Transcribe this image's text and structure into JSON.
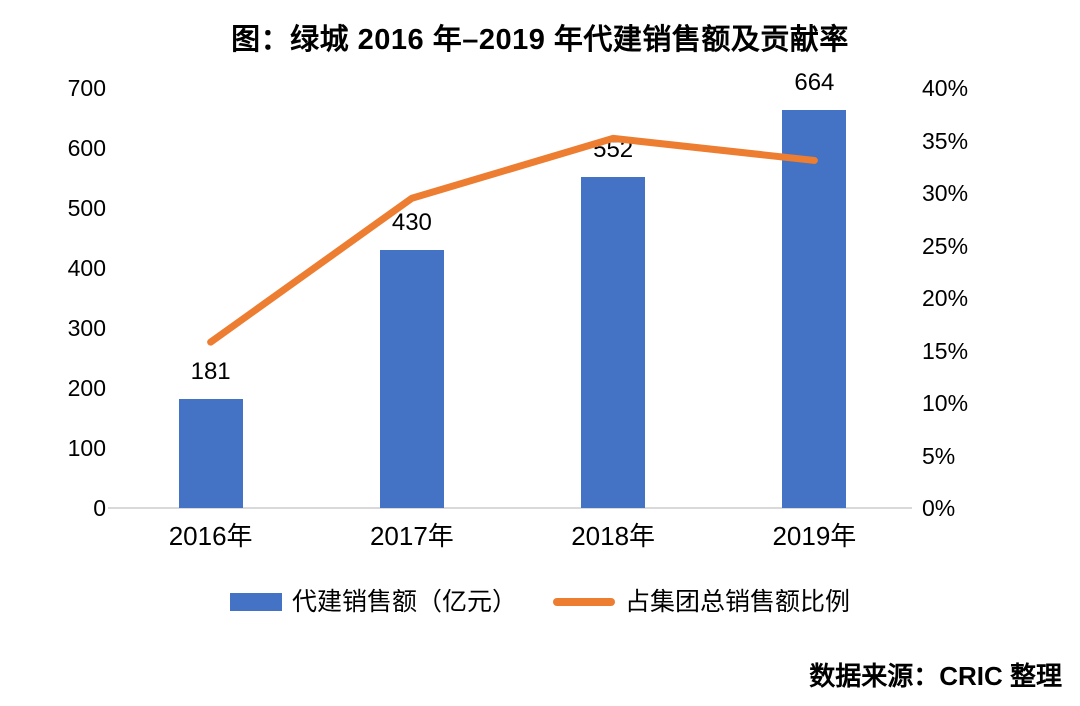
{
  "chart_data": {
    "type": "bar",
    "combo": "bar+line",
    "title": "图：绿城 2016 年–2019 年代建销售额及贡献率",
    "categories": [
      "2016年",
      "2017年",
      "2018年",
      "2019年"
    ],
    "series": [
      {
        "name": "代建销售额（亿元）",
        "type": "bar",
        "axis": "left",
        "color": "#4472C4",
        "values": [
          181,
          430,
          552,
          664
        ],
        "data_labels": [
          "181",
          "430",
          "552",
          "664"
        ]
      },
      {
        "name": "占集团总销售额比例",
        "type": "line",
        "axis": "right",
        "color": "#ED7D31",
        "values_percent": [
          15.8,
          29.5,
          35.2,
          33.1
        ],
        "estimated": true
      }
    ],
    "left_axis": {
      "min": 0,
      "max": 700,
      "step": 100,
      "tick_labels": [
        "700",
        "600",
        "500",
        "400",
        "300",
        "200",
        "100",
        "0"
      ]
    },
    "right_axis": {
      "min": 0,
      "max": 40,
      "step": 5,
      "tick_labels": [
        "40%",
        "35%",
        "30%",
        "25%",
        "20%",
        "15%",
        "10%",
        "5%",
        "0%"
      ]
    },
    "grid": false,
    "legend_position": "bottom"
  },
  "legend": {
    "bar_label": "代建销售额（亿元）",
    "line_label": "占集团总销售额比例"
  },
  "source": "数据来源：CRIC 整理",
  "colors": {
    "bar": "#4472C4",
    "line": "#ED7D31",
    "axis_line": "#D9D9D9",
    "text": "#000000"
  }
}
